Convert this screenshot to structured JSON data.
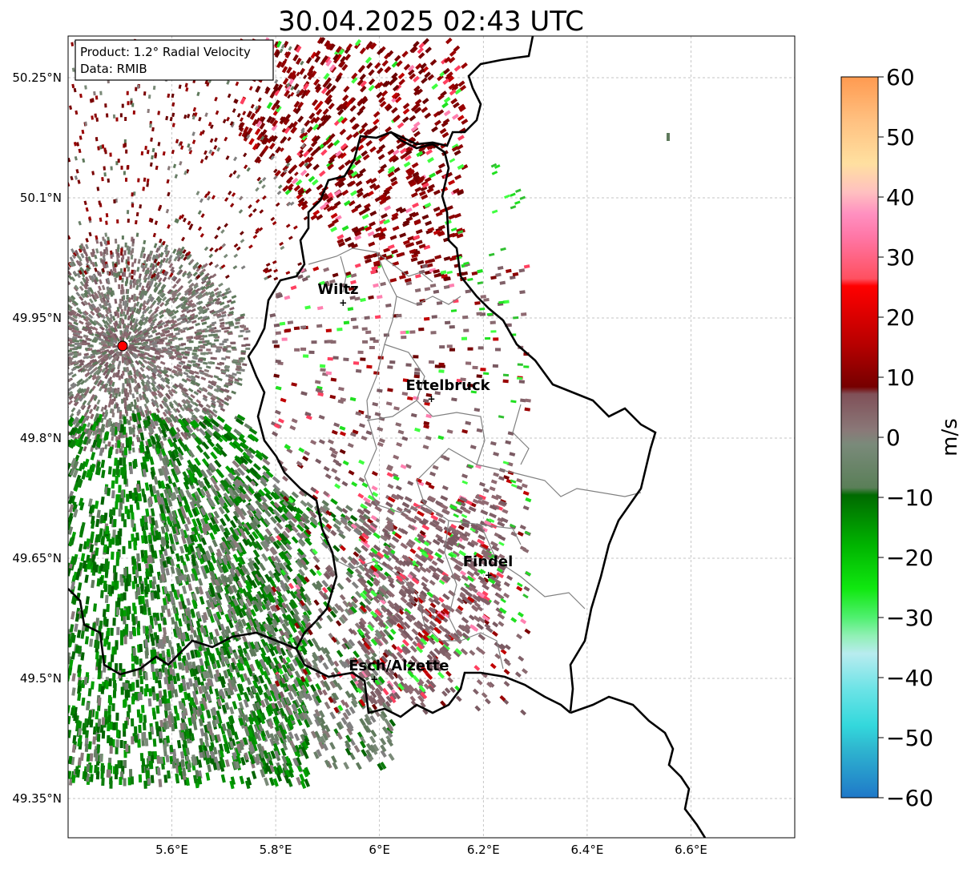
{
  "title": "30.04.2025 02:43 UTC",
  "info_box": {
    "line1": "Product: 1.2° Radial Velocity",
    "line2": "Data: RMIB"
  },
  "map": {
    "lon_ticks": [
      "5.6°E",
      "5.8°E",
      "6°E",
      "6.2°E",
      "6.4°E",
      "6.6°E"
    ],
    "lat_ticks": [
      "50.25°N",
      "50.1°N",
      "49.95°N",
      "49.8°N",
      "49.65°N",
      "49.5°N",
      "49.35°N"
    ],
    "cities": [
      {
        "name": "Wiltz",
        "lon": 5.93,
        "lat": 49.97
      },
      {
        "name": "Ettelbruck",
        "lon": 6.1,
        "lat": 49.85
      },
      {
        "name": "Findel",
        "lon": 6.21,
        "lat": 49.63
      },
      {
        "name": "Esch/Alzette",
        "lon": 5.99,
        "lat": 49.5
      }
    ],
    "radar_site": {
      "lon": 5.505,
      "lat": 49.915
    }
  },
  "colorbar": {
    "label": "m/s",
    "min": -60,
    "max": 60,
    "tick_labels": [
      "60",
      "50",
      "40",
      "30",
      "20",
      "10",
      "0",
      "−10",
      "−20",
      "−30",
      "−40",
      "−50",
      "−60"
    ]
  },
  "colors": {
    "border": "#000000",
    "canton": "#808080",
    "grid": "#b0b0b0",
    "radar_site": "#ff0000"
  }
}
